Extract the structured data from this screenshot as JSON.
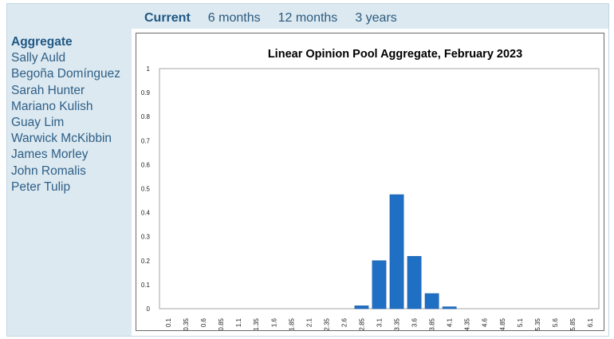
{
  "tabs": [
    {
      "label": "Current",
      "active": true
    },
    {
      "label": "6 months",
      "active": false
    },
    {
      "label": "12 months",
      "active": false
    },
    {
      "label": "3 years",
      "active": false
    }
  ],
  "sidebar": {
    "items": [
      {
        "label": "Aggregate",
        "active": true
      },
      {
        "label": "Sally Auld",
        "active": false
      },
      {
        "label": "Begoña Domínguez",
        "active": false
      },
      {
        "label": "Sarah Hunter",
        "active": false
      },
      {
        "label": "Mariano Kulish",
        "active": false
      },
      {
        "label": "Guay Lim",
        "active": false
      },
      {
        "label": "Warwick McKibbin",
        "active": false
      },
      {
        "label": "James Morley",
        "active": false
      },
      {
        "label": "John Romalis",
        "active": false
      },
      {
        "label": "Peter Tulip",
        "active": false
      }
    ]
  },
  "colors": {
    "bar": "#1f6fc4",
    "bar_edge": "#1a5ea8",
    "accent": "#1f5785",
    "frame_bg": "#dce9f1"
  },
  "chart_data": {
    "type": "bar",
    "title": "Linear Opinion Pool Aggregate, February 2023",
    "xlabel": "",
    "ylabel": "",
    "ylim": [
      0,
      1
    ],
    "yticks": [
      "0",
      "0.1",
      "0.2",
      "0.3",
      "0.4",
      "0.5",
      "0.6",
      "0.7",
      "0.8",
      "0.9",
      "1"
    ],
    "categories": [
      "0.1",
      "0.35",
      "0.6",
      "0.85",
      "1.1",
      "1.35",
      "1.6",
      "1.85",
      "2.1",
      "2.35",
      "2.6",
      "2.85",
      "3.1",
      "3.35",
      "3.6",
      "3.85",
      "4.1",
      "4.35",
      "4.6",
      "4.85",
      "5.1",
      "5.35",
      "5.6",
      "5.85",
      "6.1"
    ],
    "values": [
      0,
      0,
      0,
      0,
      0,
      0,
      0,
      0,
      0,
      0,
      0,
      0.012,
      0.2,
      0.475,
      0.218,
      0.063,
      0.008,
      0,
      0,
      0,
      0,
      0,
      0,
      0,
      0
    ],
    "grid": false,
    "legend": "none"
  }
}
